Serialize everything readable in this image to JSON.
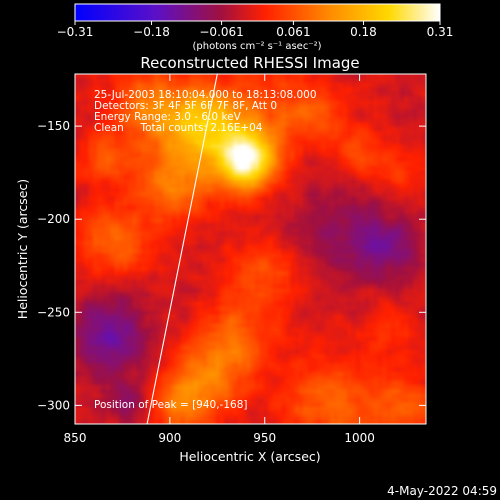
{
  "chart_data": {
    "type": "heatmap",
    "title": "Reconstructed RHESSI Image",
    "xlabel": "Heliocentric X (arcsec)",
    "ylabel": "Heliocentric Y (arcsec)",
    "xlim": [
      850,
      1035
    ],
    "ylim": [
      -310,
      -122
    ],
    "x_ticks": [
      850,
      900,
      950,
      1000
    ],
    "y_ticks": [
      -150,
      -200,
      -250,
      -300
    ],
    "x_tick_labels": [
      "850",
      "900",
      "950",
      "1000"
    ],
    "y_tick_labels": [
      "−150",
      "−200",
      "−250",
      "−300"
    ],
    "colorbar": {
      "min": -0.31,
      "max": 0.31,
      "ticks": [
        -0.31,
        -0.18,
        -0.061,
        0.061,
        0.18,
        0.31
      ],
      "tick_labels": [
        "−0.31",
        "−0.18",
        "−0.061",
        "0.061",
        "0.18",
        "0.31"
      ],
      "unit": "(photons cm⁻² s⁻¹ asec⁻²)",
      "colors": [
        "#0000ff",
        "#5a10c8",
        "#a01040",
        "#ff2000",
        "#ff8c00",
        "#ffd800",
        "#ffffff"
      ]
    },
    "annotations": [
      "25-Jul-2003 18:10:04.000 to 18:13:08.000",
      "Detectors: 3F 4F 5F 6F 7F 8F, Att 0",
      "Energy Range: 3.0 - 6.0 keV",
      "Clean     Total counts: 2.16E+04"
    ],
    "peak_label": "Position of Peak = [940,-168]",
    "peak": {
      "x": 940,
      "y": -168,
      "value": 0.31
    },
    "limb_line": {
      "x1": 888,
      "y1": -310,
      "x2": 925,
      "y2": -122
    },
    "sources": [
      {
        "x": 940,
        "y": -168,
        "sigma": 11,
        "value": 0.33
      },
      {
        "x": 918,
        "y": -148,
        "sigma": 14,
        "value": 0.22
      },
      {
        "x": 902,
        "y": -180,
        "sigma": 14,
        "value": 0.13
      },
      {
        "x": 888,
        "y": -140,
        "sigma": 13,
        "value": 0.12
      },
      {
        "x": 870,
        "y": -212,
        "sigma": 13,
        "value": 0.1
      },
      {
        "x": 866,
        "y": -168,
        "sigma": 11,
        "value": 0.07
      },
      {
        "x": 955,
        "y": -140,
        "sigma": 16,
        "value": 0.07
      },
      {
        "x": 980,
        "y": -145,
        "sigma": 12,
        "value": 0.06
      },
      {
        "x": 1000,
        "y": -165,
        "sigma": 10,
        "value": 0.07
      },
      {
        "x": 1022,
        "y": -175,
        "sigma": 10,
        "value": 0.06
      },
      {
        "x": 948,
        "y": -230,
        "sigma": 14,
        "value": 0.08
      },
      {
        "x": 935,
        "y": -265,
        "sigma": 14,
        "value": 0.09
      },
      {
        "x": 920,
        "y": -285,
        "sigma": 14,
        "value": 0.1
      },
      {
        "x": 905,
        "y": -300,
        "sigma": 12,
        "value": 0.1
      },
      {
        "x": 985,
        "y": -300,
        "sigma": 18,
        "value": 0.1
      },
      {
        "x": 1025,
        "y": -300,
        "sigma": 12,
        "value": 0.09
      },
      {
        "x": 1015,
        "y": -258,
        "sigma": 10,
        "value": 0.05
      },
      {
        "x": 868,
        "y": -262,
        "sigma": 14,
        "value": -0.12
      },
      {
        "x": 990,
        "y": -205,
        "sigma": 20,
        "value": -0.06
      },
      {
        "x": 1015,
        "y": -215,
        "sigma": 12,
        "value": -0.08
      },
      {
        "x": 878,
        "y": -298,
        "sigma": 10,
        "value": -0.06
      }
    ],
    "baseline": -0.02
  },
  "footer": {
    "timestamp": "4-May-2022 04:59"
  }
}
